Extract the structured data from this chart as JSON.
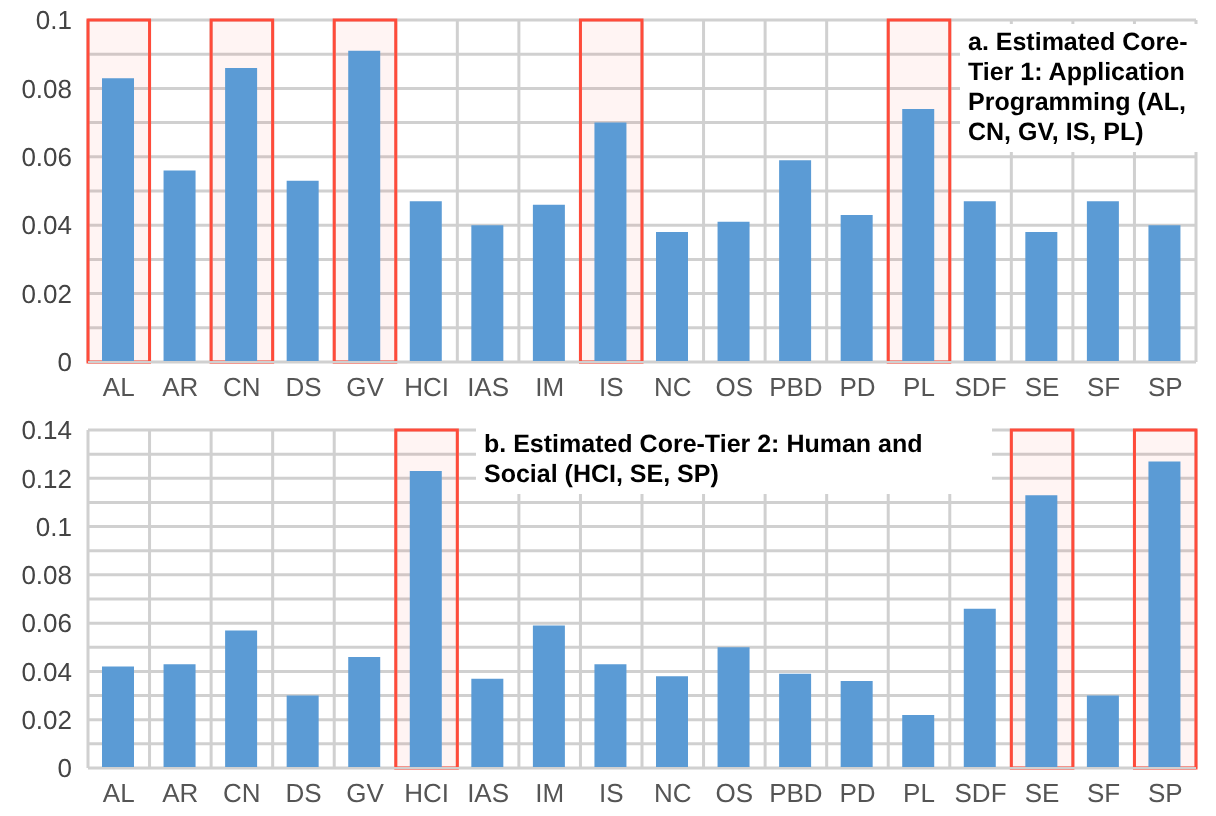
{
  "chart_data": [
    {
      "type": "bar",
      "title": "a. Estimated Core-Tier 1: Application Programming (AL, CN, GV, IS, PL)",
      "categories": [
        "AL",
        "AR",
        "CN",
        "DS",
        "GV",
        "HCI",
        "IAS",
        "IM",
        "IS",
        "NC",
        "OS",
        "PBD",
        "PD",
        "PL",
        "SDF",
        "SE",
        "SF",
        "SP"
      ],
      "values": [
        0.083,
        0.056,
        0.086,
        0.053,
        0.091,
        0.047,
        0.04,
        0.046,
        0.07,
        0.038,
        0.041,
        0.059,
        0.043,
        0.074,
        0.047,
        0.038,
        0.047,
        0.04
      ],
      "color": "#5b9bd5",
      "ylim": [
        0,
        0.1
      ],
      "yticks": [
        0,
        {
          "value": 0.01,
          "label": null
        },
        0.02,
        {
          "value": 0.03,
          "label": null
        },
        0.04,
        {
          "value": 0.05,
          "label": null
        },
        0.06,
        {
          "value": 0.07,
          "label": null
        },
        0.08,
        {
          "value": 0.09,
          "label": null
        },
        0.1
      ],
      "grid": true,
      "bands": [
        {
          "axis": "x",
          "from": "AL",
          "to": "AL",
          "color": "#ff4b3a"
        },
        {
          "axis": "x",
          "from": "CN",
          "to": "CN",
          "color": "#ff4b3a"
        },
        {
          "axis": "x",
          "from": "GV",
          "to": "GV",
          "color": "#ff4b3a"
        },
        {
          "axis": "x",
          "from": "IS",
          "to": "IS",
          "color": "#ff4b3a"
        },
        {
          "axis": "x",
          "from": "PL",
          "to": "PL",
          "color": "#ff4b3a"
        }
      ]
    },
    {
      "type": "bar",
      "title": "b. Estimated Core-Tier 2: Human and Social (HCI, SE, SP)",
      "categories": [
        "AL",
        "AR",
        "CN",
        "DS",
        "GV",
        "HCI",
        "IAS",
        "IM",
        "IS",
        "NC",
        "OS",
        "PBD",
        "PD",
        "PL",
        "SDF",
        "SE",
        "SF",
        "SP"
      ],
      "values": [
        0.042,
        0.043,
        0.057,
        0.03,
        0.046,
        0.123,
        0.037,
        0.059,
        0.043,
        0.038,
        0.05,
        0.039,
        0.036,
        0.022,
        0.066,
        0.113,
        0.03,
        0.127
      ],
      "color": "#5b9bd5",
      "ylim": [
        0,
        0.14
      ],
      "yticks": [
        0,
        {
          "value": 0.01,
          "label": null
        },
        0.02,
        {
          "value": 0.03,
          "label": null
        },
        0.04,
        {
          "value": 0.05,
          "label": null
        },
        0.06,
        {
          "value": 0.07,
          "label": null
        },
        0.08,
        {
          "value": 0.09,
          "label": null
        },
        0.1,
        {
          "value": 0.11,
          "label": null
        },
        0.12,
        {
          "value": 0.13,
          "label": null
        },
        0.14
      ],
      "grid": true,
      "bands": [
        {
          "axis": "x",
          "from": "HCI",
          "to": "HCI",
          "color": "#ff4b3a"
        },
        {
          "axis": "x",
          "from": "SE",
          "to": "SE",
          "color": "#ff4b3a"
        },
        {
          "axis": "x",
          "from": "SP",
          "to": "SP",
          "color": "#ff4b3a"
        }
      ]
    }
  ]
}
